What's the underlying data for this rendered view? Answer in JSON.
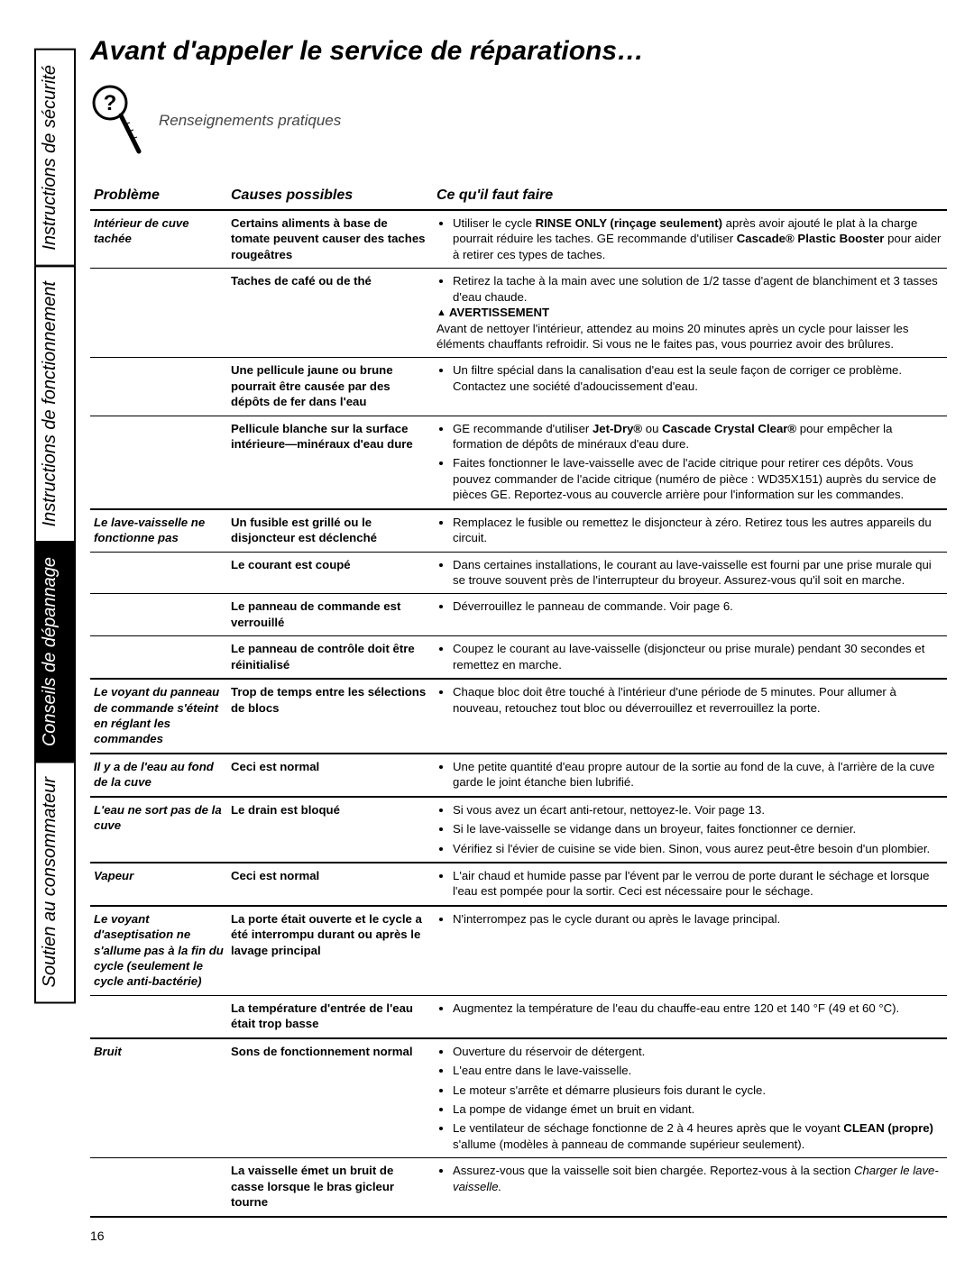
{
  "title": "Avant d'appeler le service de réparations…",
  "subtitle": "Renseignements pratiques",
  "sideTabs": [
    {
      "label": "Instructions de sécurité",
      "active": false
    },
    {
      "label": "Instructions de\nfonctionnement",
      "active": false
    },
    {
      "label": "Conseils de dépannage",
      "active": true
    },
    {
      "label": "Soutien au consommateur",
      "active": false
    }
  ],
  "headers": {
    "problem": "Problème",
    "cause": "Causes possibles",
    "todo": "Ce qu'il faut faire"
  },
  "pageNumber": "16",
  "rows": [
    {
      "problem": "Intérieur de cuve tachée",
      "cause": "Certains aliments à base de tomate peuvent causer des taches rougeâtres",
      "todo": "<ul><li>Utiliser le cycle <b>RINSE ONLY (rinçage seulement)</b> après avoir ajouté le plat à la charge pourrait réduire les taches. GE recommande d'utiliser <b>Cascade® Plastic Booster</b> pour aider à retirer ces types de taches.</li></ul>",
      "groupEnd": false
    },
    {
      "problem": "",
      "cause": "Taches de café ou de thé",
      "todo": "<ul><li>Retirez la tache à la main avec une solution de 1/2 tasse d'agent de blanchiment et 3 tasses d'eau chaude.</li></ul><div><span class='warning-label'>AVERTISSEMENT</span><br>Avant de nettoyer l'intérieur, attendez au moins 20 minutes après un cycle pour laisser les éléments chauffants refroidir. Si vous ne le faites pas, vous pourriez avoir des brûlures.</div>",
      "groupEnd": false
    },
    {
      "problem": "",
      "cause": "Une pellicule jaune ou brune pourrait être causée par des dépôts de fer dans l'eau",
      "todo": "<ul><li>Un filtre spécial dans la canalisation d'eau est la seule façon de corriger ce problème. Contactez une société d'adoucissement d'eau.</li></ul>",
      "groupEnd": false
    },
    {
      "problem": "",
      "cause": "Pellicule blanche sur la surface intérieure—minéraux d'eau dure",
      "todo": "<ul><li>GE recommande d'utiliser <b>Jet-Dry®</b> ou <b>Cascade Crystal Clear®</b> pour empêcher la formation de dépôts de minéraux d'eau dure.</li><li>Faites fonctionner le lave-vaisselle avec de l'acide citrique pour retirer ces dépôts. Vous pouvez commander de l'acide citrique (numéro de pièce : WD35X151) auprès du service de pièces GE. Reportez-vous au couvercle arrière pour l'information sur les commandes.</li></ul>",
      "groupEnd": true
    },
    {
      "problem": "Le lave-vaisselle ne fonctionne pas",
      "cause": "Un fusible est grillé ou le disjoncteur est déclenché",
      "todo": "<ul><li>Remplacez le fusible ou remettez le disjoncteur à zéro. Retirez tous les autres appareils du circuit.</li></ul>",
      "groupEnd": false
    },
    {
      "problem": "",
      "cause": "Le courant est coupé",
      "todo": "<ul><li>Dans certaines installations, le courant au lave-vaisselle est fourni par une prise murale qui se trouve souvent près de l'interrupteur du broyeur. Assurez-vous qu'il soit en marche.</li></ul>",
      "groupEnd": false
    },
    {
      "problem": "",
      "cause": "Le panneau de commande est verrouillé",
      "todo": "<ul><li>Déverrouillez le panneau de commande. Voir page 6.</li></ul>",
      "groupEnd": false
    },
    {
      "problem": "",
      "cause": "Le panneau de contrôle doit être réinitialisé",
      "todo": "<ul><li>Coupez le courant au lave-vaisselle (disjoncteur ou prise murale) pendant 30 secondes et remettez en marche.</li></ul>",
      "groupEnd": true
    },
    {
      "problem": "Le voyant du panneau de commande s'éteint en réglant les commandes",
      "cause": "Trop de temps entre les sélections de blocs",
      "todo": "<ul><li>Chaque bloc doit être touché à l'intérieur d'une période de 5 minutes. Pour allumer à nouveau, retouchez tout bloc ou déverrouillez et reverrouillez la porte.</li></ul>",
      "groupEnd": true
    },
    {
      "problem": "Il y a de l'eau au fond de la cuve",
      "cause": "Ceci est normal",
      "todo": "<ul><li>Une petite quantité d'eau propre autour de la sortie au fond de la cuve, à l'arrière de la cuve garde le joint étanche bien lubrifié.</li></ul>",
      "groupEnd": true
    },
    {
      "problem": "L'eau ne sort pas de la cuve",
      "cause": "Le drain est bloqué",
      "todo": "<ul><li>Si vous avez un écart anti-retour, nettoyez-le. Voir page 13.</li><li>Si le lave-vaisselle se vidange dans un broyeur, faites fonctionner ce dernier.</li><li>Vérifiez si l'évier de cuisine se vide bien. Sinon, vous aurez peut-être besoin d'un plombier.</li></ul>",
      "groupEnd": true
    },
    {
      "problem": "Vapeur",
      "cause": "Ceci est normal",
      "todo": "<ul><li>L'air chaud et humide passe par l'évent par le verrou de porte durant le séchage et lorsque l'eau est pompée pour la sortir. Ceci est nécessaire pour le séchage.</li></ul>",
      "groupEnd": true
    },
    {
      "problem": "Le voyant d'aseptisation ne s'allume pas à la fin du cycle (seulement le cycle anti-bactérie)",
      "cause": "La porte était ouverte et le cycle a été interrompu durant ou après le lavage principal",
      "todo": "<ul><li>N'interrompez pas le cycle durant ou après le lavage principal.</li></ul>",
      "groupEnd": false
    },
    {
      "problem": "",
      "cause": "La température d'entrée de l'eau était trop basse",
      "todo": "<ul><li>Augmentez la température de l'eau du chauffe-eau entre 120 et 140 °F (49 et 60 °C).</li></ul>",
      "groupEnd": true
    },
    {
      "problem": "Bruit",
      "cause": "Sons de fonctionnement normal",
      "todo": "<ul><li>Ouverture du réservoir de détergent.</li><li>L'eau entre dans le lave-vaisselle.</li><li>Le moteur s'arrête et démarre plusieurs fois durant le cycle.</li><li>La pompe de vidange émet un bruit en vidant.</li><li>Le ventilateur de séchage fonctionne de 2 à 4 heures après que le voyant <b>CLEAN (propre)</b> s'allume (modèles à panneau de commande supérieur seulement).</li></ul>",
      "groupEnd": false
    },
    {
      "problem": "",
      "cause": "La vaisselle émet un bruit de casse lorsque le bras gicleur tourne",
      "todo": "<ul><li>Assurez-vous que la vaisselle soit bien chargée. Reportez-vous à la section <i>Charger le lave-vaisselle.</i></li></ul>",
      "groupEnd": true
    }
  ]
}
